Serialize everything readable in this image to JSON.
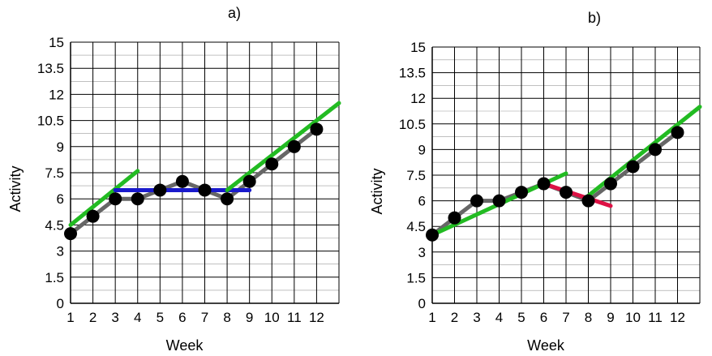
{
  "chart_data": [
    {
      "type": "line",
      "title": "a)",
      "xlabel": "Week",
      "ylabel": "Activity",
      "x_ticks": [
        1,
        2,
        3,
        4,
        5,
        6,
        7,
        8,
        9,
        10,
        11,
        12
      ],
      "y_ticks": [
        "0",
        "1.5",
        "3",
        "4.5",
        "6",
        "7.5",
        "9",
        "10.5",
        "12",
        "13.5",
        "15"
      ],
      "xlim": [
        1,
        13
      ],
      "ylim": [
        0,
        15
      ],
      "grid": true,
      "series": [
        {
          "x": [
            1,
            2,
            3,
            4,
            5,
            6,
            7,
            8,
            9,
            10,
            11,
            12
          ],
          "values": [
            4,
            5,
            6,
            6,
            6.5,
            7,
            6.5,
            6,
            7,
            8,
            9,
            10
          ]
        }
      ],
      "trend_lines": [
        {
          "color": "#22bb22",
          "x": [
            1,
            4
          ],
          "y": [
            4.5,
            7.6
          ]
        },
        {
          "color": "#1a1acc",
          "x": [
            3,
            9
          ],
          "y": [
            6.5,
            6.5
          ]
        },
        {
          "color": "#22bb22",
          "x": [
            8,
            13
          ],
          "y": [
            6.5,
            11.5
          ]
        }
      ]
    },
    {
      "type": "line",
      "title": "b)",
      "xlabel": "Week",
      "ylabel": "Activity",
      "x_ticks": [
        1,
        2,
        3,
        4,
        5,
        6,
        7,
        8,
        9,
        10,
        11,
        12
      ],
      "y_ticks": [
        "0",
        "1.5",
        "3",
        "4.5",
        "6",
        "7.5",
        "9",
        "10.5",
        "12",
        "13.5",
        "15"
      ],
      "xlim": [
        1,
        13
      ],
      "ylim": [
        0,
        15
      ],
      "grid": true,
      "series": [
        {
          "x": [
            1,
            2,
            3,
            4,
            5,
            6,
            7,
            8,
            9,
            10,
            11,
            12
          ],
          "values": [
            4,
            5,
            6,
            6,
            6.5,
            7,
            6.5,
            6,
            7,
            8,
            9,
            10
          ]
        }
      ],
      "trend_lines": [
        {
          "color": "#22bb22",
          "x": [
            1,
            7
          ],
          "y": [
            4.0,
            7.6
          ]
        },
        {
          "color": "#dd1144",
          "x": [
            6,
            9
          ],
          "y": [
            7.0,
            5.7
          ]
        },
        {
          "color": "#22bb22",
          "x": [
            8,
            13
          ],
          "y": [
            6.3,
            11.5
          ]
        }
      ]
    }
  ]
}
